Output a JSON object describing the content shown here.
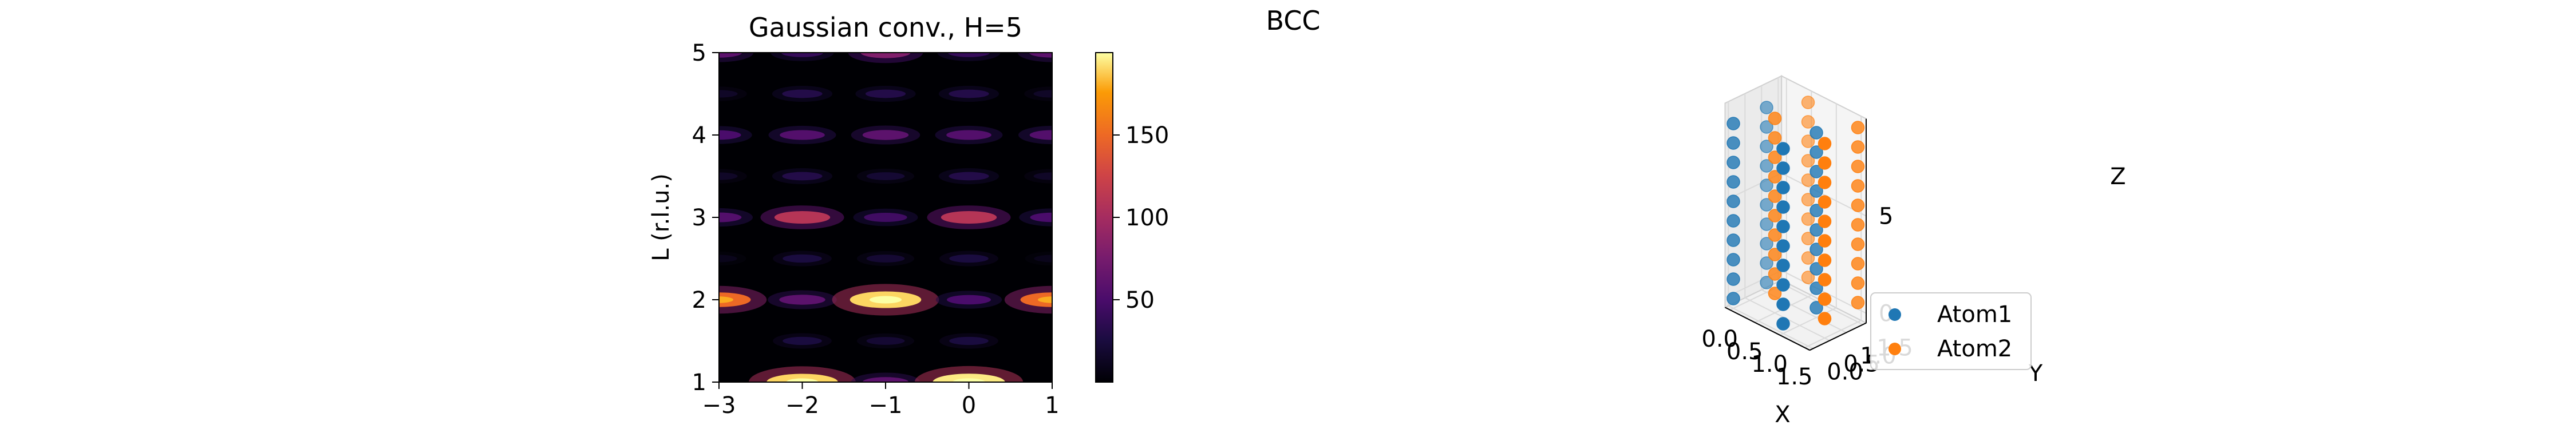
{
  "figure": {
    "title": "BCC"
  },
  "chart_data": [
    {
      "type": "heatmap",
      "title": "Gaussian conv., H=5",
      "xlabel": "",
      "ylabel": "L (r.l.u.)",
      "xlim": [
        -3,
        1
      ],
      "ylim": [
        1,
        5
      ],
      "xticks": [
        "−3",
        "−2",
        "−1",
        "0",
        "1"
      ],
      "yticks": [
        "1",
        "2",
        "3",
        "4",
        "5"
      ],
      "colormap": "inferno",
      "colorbar": {
        "range": [
          0,
          200
        ],
        "ticks": [
          "50",
          "100",
          "150"
        ]
      },
      "peak_columns_x": [
        -3,
        -2,
        -1,
        0,
        1
      ],
      "peaks": [
        {
          "l": 1.0,
          "intensity": {
            "-3": 0,
            "-2": 190,
            "-1": 60,
            "0": 195,
            "1": 0
          }
        },
        {
          "l": 1.5,
          "intensity": {
            "-3": 0,
            "-2": 25,
            "-1": 20,
            "0": 25,
            "1": 0
          }
        },
        {
          "l": 2.0,
          "intensity": {
            "-3": 150,
            "-2": 60,
            "-1": 190,
            "0": 50,
            "1": 150
          }
        },
        {
          "l": 2.5,
          "intensity": {
            "-3": 10,
            "-2": 25,
            "-1": 20,
            "0": 25,
            "1": 10
          }
        },
        {
          "l": 3.0,
          "intensity": {
            "-3": 55,
            "-2": 110,
            "-1": 45,
            "0": 110,
            "1": 50
          }
        },
        {
          "l": 3.5,
          "intensity": {
            "-3": 15,
            "-2": 30,
            "-1": 20,
            "0": 30,
            "1": 15
          }
        },
        {
          "l": 4.0,
          "intensity": {
            "-3": 50,
            "-2": 55,
            "-1": 60,
            "0": 55,
            "1": 55
          }
        },
        {
          "l": 4.5,
          "intensity": {
            "-3": 15,
            "-2": 30,
            "-1": 30,
            "0": 30,
            "1": 15
          }
        },
        {
          "l": 5.0,
          "intensity": {
            "-3": 60,
            "-2": 40,
            "-1": 80,
            "0": 40,
            "1": 60
          }
        }
      ]
    },
    {
      "type": "scatter",
      "projection": "3d",
      "xlabel": "X",
      "ylabel": "Y",
      "zlabel": "Z",
      "xticks": [
        "0.0",
        "0.5",
        "1.0",
        "1.5"
      ],
      "yticks": [
        "0.0",
        "0.5",
        "1.0",
        "1.5"
      ],
      "zticks": [
        "0",
        "5"
      ],
      "legend": {
        "position": "lower-right"
      },
      "series": [
        {
          "name": "Atom1",
          "color": "#1f77b4",
          "columns": [
            {
              "x": 0,
              "y": 0
            },
            {
              "x": 0,
              "y": 1
            },
            {
              "x": 1,
              "y": 0
            },
            {
              "x": 1,
              "y": 1
            }
          ],
          "z": [
            0,
            1,
            2,
            3,
            4,
            5,
            6,
            7,
            8,
            9
          ]
        },
        {
          "name": "Atom2",
          "color": "#ff7f0e",
          "columns": [
            {
              "x": 0.5,
              "y": 0.5
            },
            {
              "x": 0.5,
              "y": 1.5
            },
            {
              "x": 1.5,
              "y": 0.5
            },
            {
              "x": 1.5,
              "y": 1.5
            }
          ],
          "z": [
            0.5,
            1.5,
            2.5,
            3.5,
            4.5,
            5.5,
            6.5,
            7.5,
            8.5,
            9.5
          ]
        }
      ]
    }
  ]
}
